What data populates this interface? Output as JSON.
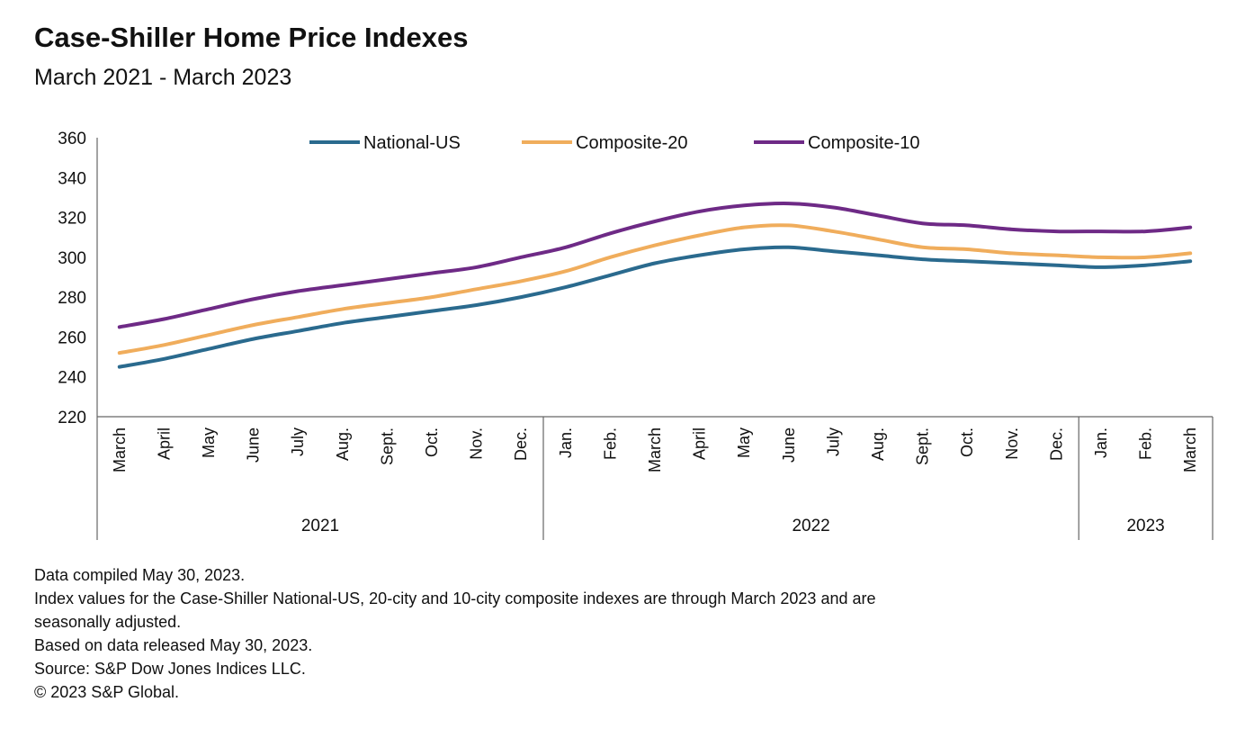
{
  "header": {
    "title": "Case-Shiller Home Price Indexes",
    "subtitle": "March 2021 - March 2023"
  },
  "chart_data": {
    "type": "line",
    "ylim": [
      220,
      360
    ],
    "yticks": [
      220,
      240,
      260,
      280,
      300,
      320,
      340,
      360
    ],
    "grid": false,
    "legend_position": "top-center",
    "categories": [
      "March",
      "April",
      "May",
      "June",
      "July",
      "Aug.",
      "Sept.",
      "Oct.",
      "Nov.",
      "Dec.",
      "Jan.",
      "Feb.",
      "March",
      "April",
      "May",
      "June",
      "July",
      "Aug.",
      "Sept.",
      "Oct.",
      "Nov.",
      "Dec.",
      "Jan.",
      "Feb.",
      "March"
    ],
    "year_groups": [
      {
        "label": "2021",
        "start": 0,
        "end": 9
      },
      {
        "label": "2022",
        "start": 10,
        "end": 21
      },
      {
        "label": "2023",
        "start": 22,
        "end": 24
      }
    ],
    "series": [
      {
        "name": "National-US",
        "color": "#2a6a8e",
        "values": [
          245,
          249,
          254,
          259,
          263,
          267,
          270,
          273,
          276,
          280,
          285,
          291,
          297,
          301,
          304,
          305,
          303,
          301,
          299,
          298,
          297,
          296,
          295,
          296,
          298
        ]
      },
      {
        "name": "Composite-20",
        "color": "#f0ad5c",
        "values": [
          252,
          256,
          261,
          266,
          270,
          274,
          277,
          280,
          284,
          288,
          293,
          300,
          306,
          311,
          315,
          316,
          313,
          309,
          305,
          304,
          302,
          301,
          300,
          300,
          302
        ]
      },
      {
        "name": "Composite-10",
        "color": "#6e2a86",
        "values": [
          265,
          269,
          274,
          279,
          283,
          286,
          289,
          292,
          295,
          300,
          305,
          312,
          318,
          323,
          326,
          327,
          325,
          321,
          317,
          316,
          314,
          313,
          313,
          313,
          315
        ]
      }
    ]
  },
  "notes": [
    "Data compiled May 30, 2023.",
    "Index values for the Case-Shiller National-US, 20-city and 10-city composite indexes are through March 2023 and are",
    "seasonally adjusted.",
    "Based on data released May 30, 2023.",
    "Source: S&P Dow Jones Indices LLC.",
    "© 2023 S&P Global."
  ]
}
